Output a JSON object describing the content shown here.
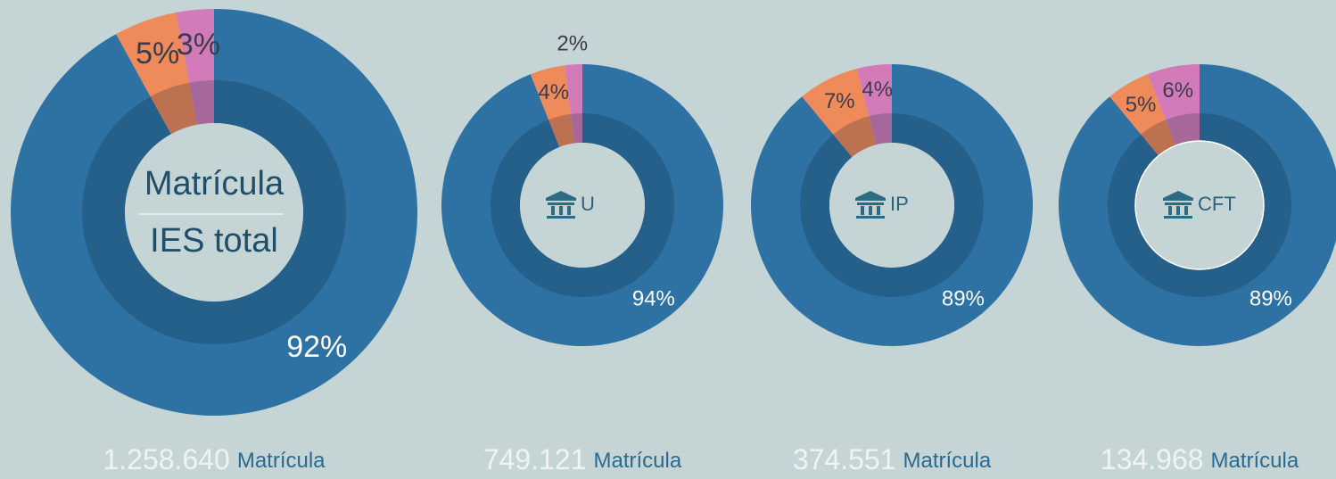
{
  "chart_data": [
    {
      "type": "pie",
      "values": [
        92,
        5,
        3
      ],
      "value_labels": [
        "92%",
        "5%",
        "3%"
      ],
      "colors": [
        "#2e72a4",
        "#ef8a5a",
        "#d27bb8"
      ],
      "center_labels": [
        "Matrícula",
        "IES total"
      ],
      "icon": false,
      "total": "1.258.640",
      "unit": "Matrícula"
    },
    {
      "type": "pie",
      "values": [
        94,
        4,
        2
      ],
      "value_labels": [
        "94%",
        "4%",
        "2%"
      ],
      "colors": [
        "#2e72a4",
        "#ef8a5a",
        "#d27bb8"
      ],
      "center_labels": [
        "U"
      ],
      "icon": true,
      "total": "749.121",
      "unit": "Matrícula"
    },
    {
      "type": "pie",
      "values": [
        89,
        7,
        4
      ],
      "value_labels": [
        "89%",
        "7%",
        "4%"
      ],
      "colors": [
        "#2e72a4",
        "#ef8a5a",
        "#d27bb8"
      ],
      "center_labels": [
        "IP"
      ],
      "icon": true,
      "total": "374.551",
      "unit": "Matrícula"
    },
    {
      "type": "pie",
      "values": [
        89,
        5,
        6
      ],
      "value_labels": [
        "89%",
        "5%",
        "6%"
      ],
      "colors": [
        "#2e72a4",
        "#ef8a5a",
        "#d27bb8"
      ],
      "center_labels": [
        "CFT"
      ],
      "icon": true,
      "total": "134.968",
      "unit": "Matrícula"
    }
  ]
}
